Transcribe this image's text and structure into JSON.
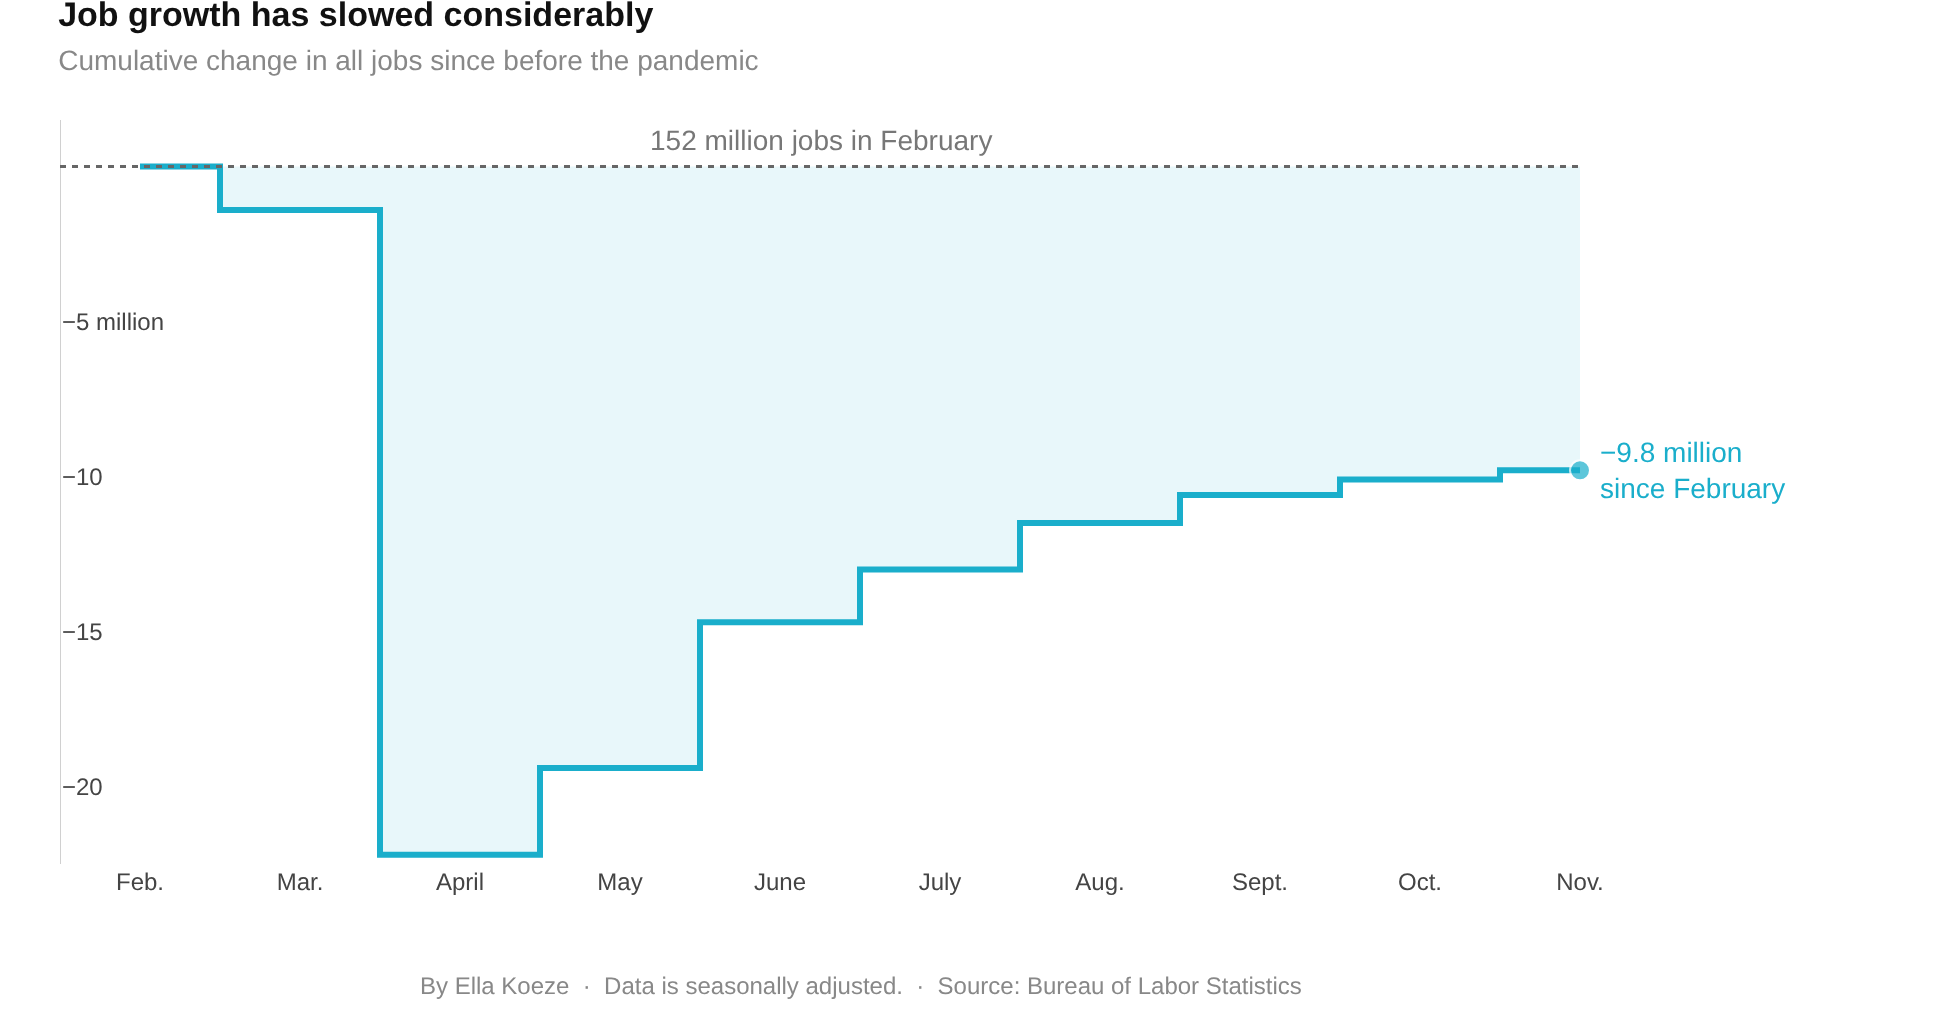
{
  "chart_data": {
    "type": "step",
    "title": "Job growth has slowed considerably",
    "subtitle": "Cumulative change in all jobs since before the pandemic",
    "categories": [
      "Feb.",
      "Mar.",
      "April",
      "May",
      "June",
      "July",
      "Aug.",
      "Sept.",
      "Oct.",
      "Nov."
    ],
    "series": [
      {
        "color": "#1aaecb",
        "values": [
          0,
          -1.4,
          -22.2,
          -19.4,
          -14.7,
          -13.0,
          -11.5,
          -10.6,
          -10.1,
          -9.8
        ]
      }
    ],
    "ylim": [
      -22.5,
      1.5
    ],
    "yticks": [
      {
        "value": -5,
        "label": "−5 million"
      },
      {
        "value": -10,
        "label": "−10"
      },
      {
        "value": -15,
        "label": "−15"
      },
      {
        "value": -20,
        "label": "−20"
      }
    ],
    "ref_lines": [
      {
        "axis": "y",
        "value": 0,
        "label": "152 million jobs in February",
        "color": "#666666",
        "line_style": "dotted"
      }
    ],
    "annotations": [
      {
        "text": "−9.8 million\nsince February",
        "x": "Nov.",
        "y": -9.8
      },
      "By Ella Koeze  ·  Data is seasonally adjusted.  ·  Source: Bureau of Labor Statistics"
    ],
    "grid": false,
    "legend": false
  }
}
